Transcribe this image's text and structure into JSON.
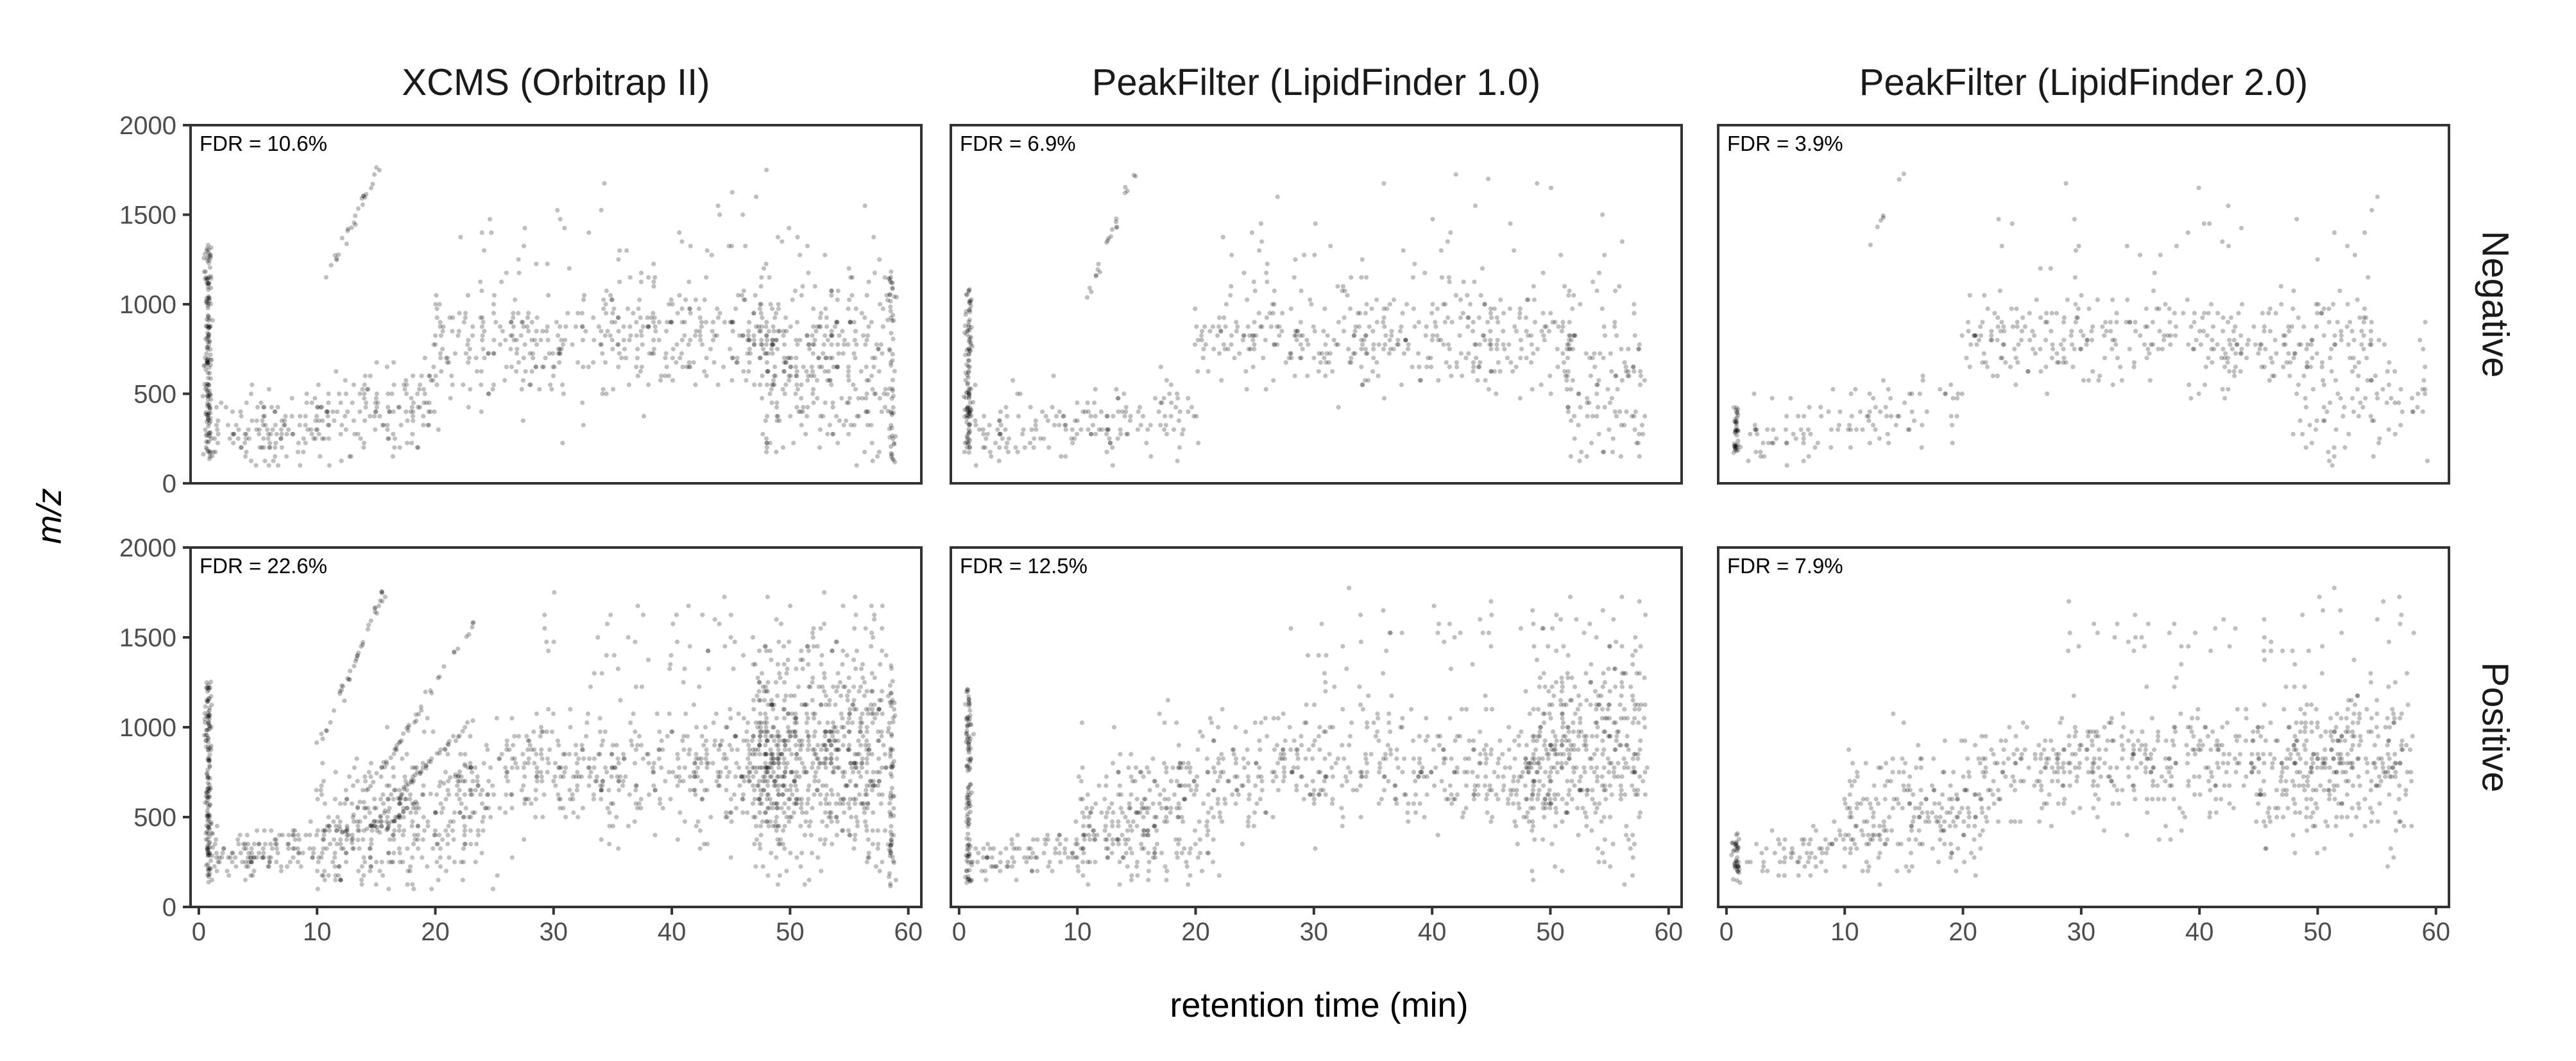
{
  "chart_data": {
    "type": "scatter",
    "facets": {
      "columns": [
        "XCMS (Orbitrap II)",
        "PeakFilter (LipidFinder 1.0)",
        "PeakFilter (LipidFinder 2.0)"
      ],
      "rows": [
        "Negative",
        "Positive"
      ]
    },
    "xlabel": "retention time (min)",
    "ylabel": "m/z",
    "xlim": [
      -0.7,
      61.1
    ],
    "ylim": [
      0,
      2000
    ],
    "xticks": [
      0,
      10,
      20,
      30,
      40,
      50,
      60
    ],
    "yticks": [
      0,
      500,
      1000,
      1500,
      2000
    ],
    "grid": false,
    "point_color": "#000000",
    "point_alpha": 0.25,
    "panels": [
      {
        "row": 0,
        "col": 0,
        "annotation": "FDR = 10.6%",
        "clusters": [
          {
            "kind": "line",
            "from": [
              0.8,
              130
            ],
            "to": [
              0.8,
              1320
            ],
            "n": 160
          },
          {
            "kind": "blob",
            "x": [
              1,
              20
            ],
            "ymean": [
              250,
              450
            ],
            "ysd": 110,
            "n": 260
          },
          {
            "kind": "line",
            "from": [
              10.5,
              1100
            ],
            "to": [
              15.2,
              1770
            ],
            "n": 26
          },
          {
            "kind": "blob",
            "x": [
              20,
              50
            ],
            "ymean": [
              780,
              820
            ],
            "ysd": 150,
            "n": 420
          },
          {
            "kind": "blob",
            "x": [
              47,
              58
            ],
            "ymean": [
              650,
              600
            ],
            "ysd": 300,
            "n": 300
          },
          {
            "kind": "line",
            "from": [
              58.6,
              120
            ],
            "to": [
              58.6,
              1200
            ],
            "n": 60
          },
          {
            "kind": "blob",
            "x": [
              20,
              58
            ],
            "ymean": [
              1400,
              1400
            ],
            "ysd": 180,
            "n": 45
          }
        ]
      },
      {
        "row": 0,
        "col": 1,
        "annotation": "FDR = 6.9%",
        "clusters": [
          {
            "kind": "line",
            "from": [
              0.8,
              130
            ],
            "to": [
              0.8,
              1100
            ],
            "n": 110
          },
          {
            "kind": "blob",
            "x": [
              1,
              20
            ],
            "ymean": [
              250,
              420
            ],
            "ysd": 110,
            "n": 170
          },
          {
            "kind": "line",
            "from": [
              11,
              1050
            ],
            "to": [
              15,
              1770
            ],
            "n": 22
          },
          {
            "kind": "blob",
            "x": [
              20,
              52
            ],
            "ymean": [
              790,
              810
            ],
            "ysd": 140,
            "n": 380
          },
          {
            "kind": "blob",
            "x": [
              50,
              58
            ],
            "ymean": [
              600,
              500
            ],
            "ysd": 260,
            "n": 120
          },
          {
            "kind": "blob",
            "x": [
              22,
              56
            ],
            "ymean": [
              1350,
              1400
            ],
            "ysd": 170,
            "n": 40
          }
        ]
      },
      {
        "row": 0,
        "col": 2,
        "annotation": "FDR = 3.9%",
        "clusters": [
          {
            "kind": "line",
            "from": [
              0.8,
              130
            ],
            "to": [
              0.8,
              420
            ],
            "n": 40
          },
          {
            "kind": "blob",
            "x": [
              2,
              20
            ],
            "ymean": [
              250,
              450
            ],
            "ysd": 110,
            "n": 110
          },
          {
            "kind": "line",
            "from": [
              12,
              1300
            ],
            "to": [
              15,
              1770
            ],
            "n": 7
          },
          {
            "kind": "blob",
            "x": [
              20,
              55
            ],
            "ymean": [
              800,
              790
            ],
            "ysd": 120,
            "n": 330
          },
          {
            "kind": "blob",
            "x": [
              48,
              60
            ],
            "ymean": [
              550,
              450
            ],
            "ysd": 250,
            "n": 110
          },
          {
            "kind": "blob",
            "x": [
              22,
              56
            ],
            "ymean": [
              1350,
              1400
            ],
            "ysd": 160,
            "n": 35
          }
        ]
      },
      {
        "row": 1,
        "col": 0,
        "annotation": "FDR = 22.6%",
        "clusters": [
          {
            "kind": "line",
            "from": [
              0.8,
              130
            ],
            "to": [
              0.8,
              1250
            ],
            "n": 150
          },
          {
            "kind": "blob",
            "x": [
              1,
              10
            ],
            "ymean": [
              250,
              350
            ],
            "ysd": 60,
            "n": 120
          },
          {
            "kind": "blob",
            "x": [
              10,
              25
            ],
            "ymean": [
              380,
              550
            ],
            "ysd": 200,
            "n": 380
          },
          {
            "kind": "line",
            "from": [
              10.2,
              900
            ],
            "to": [
              15.8,
              1770
            ],
            "n": 40
          },
          {
            "kind": "line",
            "from": [
              12,
              400
            ],
            "to": [
              23.5,
              1600
            ],
            "n": 55
          },
          {
            "kind": "line",
            "from": [
              13,
              350
            ],
            "to": [
              24,
              1100
            ],
            "n": 45
          },
          {
            "kind": "line",
            "from": [
              15,
              400
            ],
            "to": [
              23,
              800
            ],
            "n": 30
          },
          {
            "kind": "blob",
            "x": [
              25,
              50
            ],
            "ymean": [
              780,
              760
            ],
            "ysd": 160,
            "n": 450
          },
          {
            "kind": "blob",
            "x": [
              47,
              58
            ],
            "ymean": [
              850,
              850
            ],
            "ysd": 330,
            "n": 650
          },
          {
            "kind": "line",
            "from": [
              58.6,
              120
            ],
            "to": [
              58.6,
              1350
            ],
            "n": 70
          },
          {
            "kind": "blob",
            "x": [
              28,
              58
            ],
            "ymean": [
              1450,
              1500
            ],
            "ysd": 150,
            "n": 70
          }
        ]
      },
      {
        "row": 1,
        "col": 1,
        "annotation": "FDR = 12.5%",
        "clusters": [
          {
            "kind": "line",
            "from": [
              0.8,
              130
            ],
            "to": [
              0.8,
              1220
            ],
            "n": 110
          },
          {
            "kind": "blob",
            "x": [
              1,
              10
            ],
            "ymean": [
              250,
              330
            ],
            "ysd": 60,
            "n": 80
          },
          {
            "kind": "blob",
            "x": [
              10,
              22
            ],
            "ymean": [
              450,
              600
            ],
            "ysd": 220,
            "n": 300
          },
          {
            "kind": "blob",
            "x": [
              22,
              50
            ],
            "ymean": [
              780,
              780
            ],
            "ysd": 160,
            "n": 400
          },
          {
            "kind": "blob",
            "x": [
              48,
              58
            ],
            "ymean": [
              850,
              900
            ],
            "ysd": 300,
            "n": 380
          },
          {
            "kind": "blob",
            "x": [
              28,
              58
            ],
            "ymean": [
              1450,
              1500
            ],
            "ysd": 140,
            "n": 55
          }
        ]
      },
      {
        "row": 1,
        "col": 2,
        "annotation": "FDR = 7.9%",
        "clusters": [
          {
            "kind": "line",
            "from": [
              0.8,
              150
            ],
            "to": [
              0.8,
              420
            ],
            "n": 40
          },
          {
            "kind": "blob",
            "x": [
              2,
              10
            ],
            "ymean": [
              250,
              350
            ],
            "ysd": 70,
            "n": 60
          },
          {
            "kind": "blob",
            "x": [
              10,
              22
            ],
            "ymean": [
              450,
              550
            ],
            "ysd": 200,
            "n": 230
          },
          {
            "kind": "blob",
            "x": [
              22,
              58
            ],
            "ymean": [
              760,
              830
            ],
            "ysd": 150,
            "n": 520
          },
          {
            "kind": "blob",
            "x": [
              45,
              58
            ],
            "ymean": [
              700,
              800
            ],
            "ysd": 280,
            "n": 160
          },
          {
            "kind": "blob",
            "x": [
              28,
              58
            ],
            "ymean": [
              1450,
              1550
            ],
            "ysd": 130,
            "n": 50
          }
        ]
      }
    ]
  }
}
